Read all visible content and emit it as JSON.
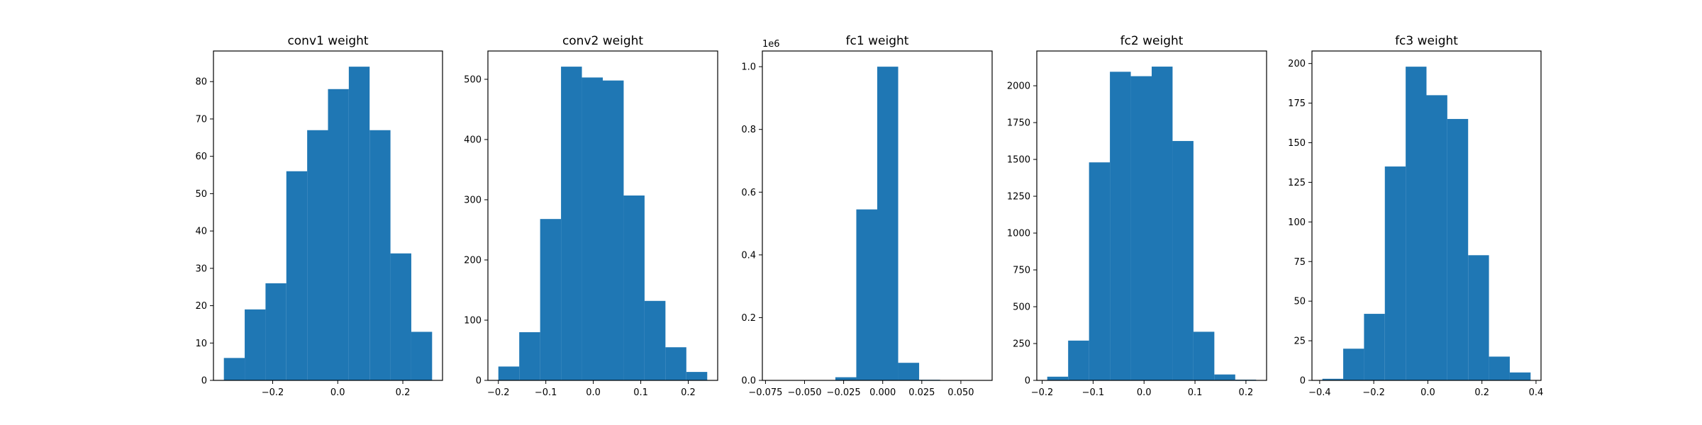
{
  "figure": {
    "background": "#ffffff",
    "bar_color": "#1f77b4"
  },
  "chart_data": [
    {
      "type": "bar",
      "title": "conv1 weight",
      "xlabel": "",
      "ylabel": "",
      "bin_edges": [
        -0.35,
        -0.286,
        -0.222,
        -0.158,
        -0.094,
        -0.03,
        0.034,
        0.098,
        0.162,
        0.226,
        0.29
      ],
      "values": [
        6,
        19,
        26,
        56,
        67,
        78,
        84,
        67,
        34,
        13
      ],
      "xlim": [
        -0.382,
        0.322
      ],
      "ylim": [
        0,
        88.2
      ],
      "xticks": [
        -0.2,
        0.0,
        0.2
      ],
      "xtick_labels": [
        "−0.2",
        "0.0",
        "0.2"
      ],
      "yticks": [
        0,
        10,
        20,
        30,
        40,
        50,
        60,
        70,
        80
      ],
      "ytick_labels": [
        "0",
        "10",
        "20",
        "30",
        "40",
        "50",
        "60",
        "70",
        "80"
      ],
      "offset_text": ""
    },
    {
      "type": "bar",
      "title": "conv2 weight",
      "xlabel": "",
      "ylabel": "",
      "bin_edges": [
        -0.2,
        -0.156,
        -0.112,
        -0.068,
        -0.024,
        0.02,
        0.064,
        0.108,
        0.152,
        0.196,
        0.24
      ],
      "values": [
        23,
        80,
        268,
        521,
        503,
        498,
        307,
        132,
        55,
        14
      ],
      "xlim": [
        -0.222,
        0.262
      ],
      "ylim": [
        0,
        547
      ],
      "xticks": [
        -0.2,
        -0.1,
        0.0,
        0.1,
        0.2
      ],
      "xtick_labels": [
        "−0.2",
        "−0.1",
        "0.0",
        "0.1",
        "0.2"
      ],
      "yticks": [
        0,
        100,
        200,
        300,
        400,
        500
      ],
      "ytick_labels": [
        "0",
        "100",
        "200",
        "300",
        "400",
        "500"
      ],
      "offset_text": ""
    },
    {
      "type": "bar",
      "title": "fc1 weight",
      "xlabel": "",
      "ylabel": "",
      "bin_edges": [
        -0.0705,
        -0.0571,
        -0.0437,
        -0.0303,
        -0.0169,
        -0.0035,
        0.0099,
        0.0233,
        0.0367,
        0.0501,
        0.0635
      ],
      "values": [
        0,
        0,
        500,
        10000,
        545000,
        1000000,
        56000,
        2000,
        0,
        0
      ],
      "xlim": [
        -0.077,
        0.07
      ],
      "ylim": [
        0,
        1050000
      ],
      "xticks": [
        -0.075,
        -0.05,
        -0.025,
        0.0,
        0.025,
        0.05
      ],
      "xtick_labels": [
        "−0.075",
        "−0.050",
        "−0.025",
        "0.000",
        "0.025",
        "0.050"
      ],
      "yticks": [
        0,
        200000,
        400000,
        600000,
        800000,
        1000000
      ],
      "ytick_labels": [
        "0.0",
        "0.2",
        "0.4",
        "0.6",
        "0.8",
        "1.0"
      ],
      "offset_text": "1e6"
    },
    {
      "type": "bar",
      "title": "fc2 weight",
      "xlabel": "",
      "ylabel": "",
      "bin_edges": [
        -0.19,
        -0.149,
        -0.108,
        -0.067,
        -0.026,
        0.015,
        0.056,
        0.097,
        0.138,
        0.179,
        0.22
      ],
      "values": [
        25,
        270,
        1480,
        2095,
        2065,
        2130,
        1625,
        330,
        40,
        5
      ],
      "xlim": [
        -0.2105,
        0.2405
      ],
      "ylim": [
        0,
        2236
      ],
      "xticks": [
        -0.2,
        -0.1,
        0.0,
        0.1,
        0.2
      ],
      "xtick_labels": [
        "−0.2",
        "−0.1",
        "0.0",
        "0.1",
        "0.2"
      ],
      "yticks": [
        0,
        250,
        500,
        750,
        1000,
        1250,
        1500,
        1750,
        2000
      ],
      "ytick_labels": [
        "0",
        "250",
        "500",
        "750",
        "1000",
        "1250",
        "1500",
        "1750",
        "2000"
      ],
      "offset_text": ""
    },
    {
      "type": "bar",
      "title": "fc3 weight",
      "xlabel": "",
      "ylabel": "",
      "bin_edges": [
        -0.39,
        -0.313,
        -0.236,
        -0.159,
        -0.082,
        -0.005,
        0.072,
        0.149,
        0.226,
        0.303,
        0.38
      ],
      "values": [
        1,
        20,
        42,
        135,
        198,
        180,
        165,
        79,
        15,
        5
      ],
      "xlim": [
        -0.4285,
        0.4185
      ],
      "ylim": [
        0,
        207.9
      ],
      "xticks": [
        -0.4,
        -0.2,
        0.0,
        0.2,
        0.4
      ],
      "xtick_labels": [
        "−0.4",
        "−0.2",
        "0.0",
        "0.2",
        "0.4"
      ],
      "yticks": [
        0,
        25,
        50,
        75,
        100,
        125,
        150,
        175,
        200
      ],
      "ytick_labels": [
        "0",
        "25",
        "50",
        "75",
        "100",
        "125",
        "150",
        "175",
        "200"
      ],
      "offset_text": ""
    }
  ]
}
